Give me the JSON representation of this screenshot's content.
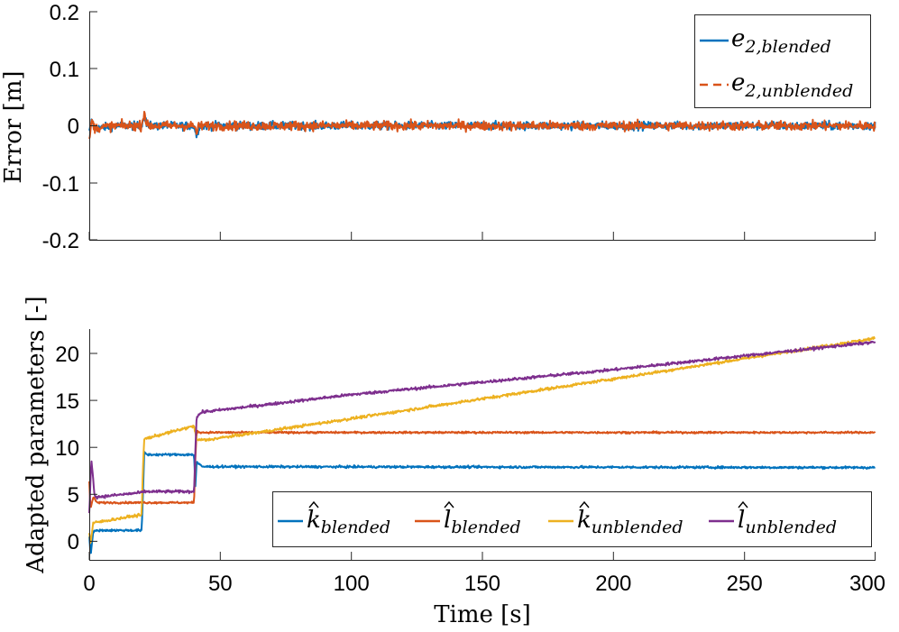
{
  "chart_data": [
    {
      "type": "line",
      "title": "",
      "xlabel": "",
      "ylabel": "Error [m]",
      "xlim": [
        0,
        300
      ],
      "ylim": [
        -0.2,
        0.2
      ],
      "x_ticks": [
        0,
        50,
        100,
        150,
        200,
        250,
        300
      ],
      "y_ticks": [
        0.2,
        0.1,
        0,
        -0.1,
        -0.2
      ],
      "y_tick_labels": [
        "0.2",
        "0.1",
        "0",
        "-0.1",
        "-0.2"
      ],
      "legend_position": "top-right",
      "series": [
        {
          "name": "e_2,blended",
          "legend_main": "e",
          "legend_sub": "2,blended",
          "color": "#0072BD",
          "dash": "solid",
          "noise": 0.007,
          "points": [
            [
              0,
              -0.012
            ],
            [
              1,
              0.01
            ],
            [
              2,
              -0.005
            ],
            [
              10,
              0.0
            ],
            [
              20,
              0.0
            ],
            [
              21,
              0.02
            ],
            [
              22,
              0.0
            ],
            [
              40,
              0.0
            ],
            [
              41,
              -0.018
            ],
            [
              42,
              0.0
            ],
            [
              300,
              0.0
            ]
          ]
        },
        {
          "name": "e_2,unblended",
          "legend_main": "e",
          "legend_sub": "2,unblended",
          "color": "#D95319",
          "dash": "dashed",
          "noise": 0.008,
          "points": [
            [
              0,
              -0.025
            ],
            [
              1,
              0.01
            ],
            [
              2,
              -0.004
            ],
            [
              10,
              0.0
            ],
            [
              20,
              0.0
            ],
            [
              21,
              0.025
            ],
            [
              22,
              0.0
            ],
            [
              40,
              0.0
            ],
            [
              41,
              -0.012
            ],
            [
              42,
              0.0
            ],
            [
              300,
              0.0
            ]
          ]
        }
      ]
    },
    {
      "type": "line",
      "title": "",
      "xlabel": "Time [s]",
      "ylabel": "Adapted parameters [-]",
      "xlim": [
        0,
        300
      ],
      "ylim": [
        -2,
        23
      ],
      "x_ticks": [
        0,
        50,
        100,
        150,
        200,
        250,
        300
      ],
      "x_tick_labels": [
        "0",
        "50",
        "100",
        "150",
        "200",
        "250",
        "300"
      ],
      "y_ticks": [
        0,
        5,
        10,
        15,
        20
      ],
      "y_tick_labels": [
        "0",
        "5",
        "10",
        "15",
        "20"
      ],
      "legend_position": "bottom-right",
      "series": [
        {
          "name": "k_hat blended",
          "legend_main": "k",
          "legend_sub": "blended",
          "color": "#0072BD",
          "noise": 0.12,
          "points": [
            [
              0,
              0.5
            ],
            [
              0.5,
              -1.5
            ],
            [
              1.5,
              1.0
            ],
            [
              3,
              1.2
            ],
            [
              20,
              1.2
            ],
            [
              20.5,
              5
            ],
            [
              21,
              9.7
            ],
            [
              22,
              9.4
            ],
            [
              40,
              9.4
            ],
            [
              40.5,
              6
            ],
            [
              41,
              8.6
            ],
            [
              43,
              8.1
            ],
            [
              300,
              8.0
            ]
          ]
        },
        {
          "name": "l_hat blended",
          "legend_main": "l",
          "legend_sub": "blended",
          "color": "#D95319",
          "noise": 0.1,
          "points": [
            [
              0,
              6.5
            ],
            [
              0.5,
              3.5
            ],
            [
              1.5,
              4.8
            ],
            [
              3,
              4.2
            ],
            [
              20,
              4.2
            ],
            [
              40,
              4.2
            ],
            [
              40.5,
              9
            ],
            [
              41,
              11.9
            ],
            [
              43,
              11.8
            ],
            [
              300,
              11.8
            ]
          ]
        },
        {
          "name": "k_hat unblended",
          "legend_main": "k",
          "legend_sub": "unblended",
          "color": "#EDB120",
          "noise": 0.15,
          "points": [
            [
              0,
              1.0
            ],
            [
              0.5,
              -0.3
            ],
            [
              1.5,
              2.0
            ],
            [
              20,
              2.9
            ],
            [
              20.5,
              8
            ],
            [
              21,
              11.1
            ],
            [
              40,
              12.5
            ],
            [
              41,
              11.0
            ],
            [
              45,
              11.0
            ],
            [
              100,
              13.3
            ],
            [
              200,
              17.6
            ],
            [
              300,
              22.0
            ]
          ]
        },
        {
          "name": "l_hat unblended",
          "legend_main": "l",
          "legend_sub": "unblended",
          "color": "#7E2F8E",
          "noise": 0.15,
          "points": [
            [
              0,
              3.0
            ],
            [
              0.8,
              9.0
            ],
            [
              2,
              5.0
            ],
            [
              3,
              4.8
            ],
            [
              20,
              5.3
            ],
            [
              21,
              5.4
            ],
            [
              40,
              5.4
            ],
            [
              40.5,
              10
            ],
            [
              41,
              13.5
            ],
            [
              43,
              14.0
            ],
            [
              100,
              15.9
            ],
            [
              200,
              18.6
            ],
            [
              300,
              21.6
            ]
          ]
        }
      ]
    }
  ]
}
